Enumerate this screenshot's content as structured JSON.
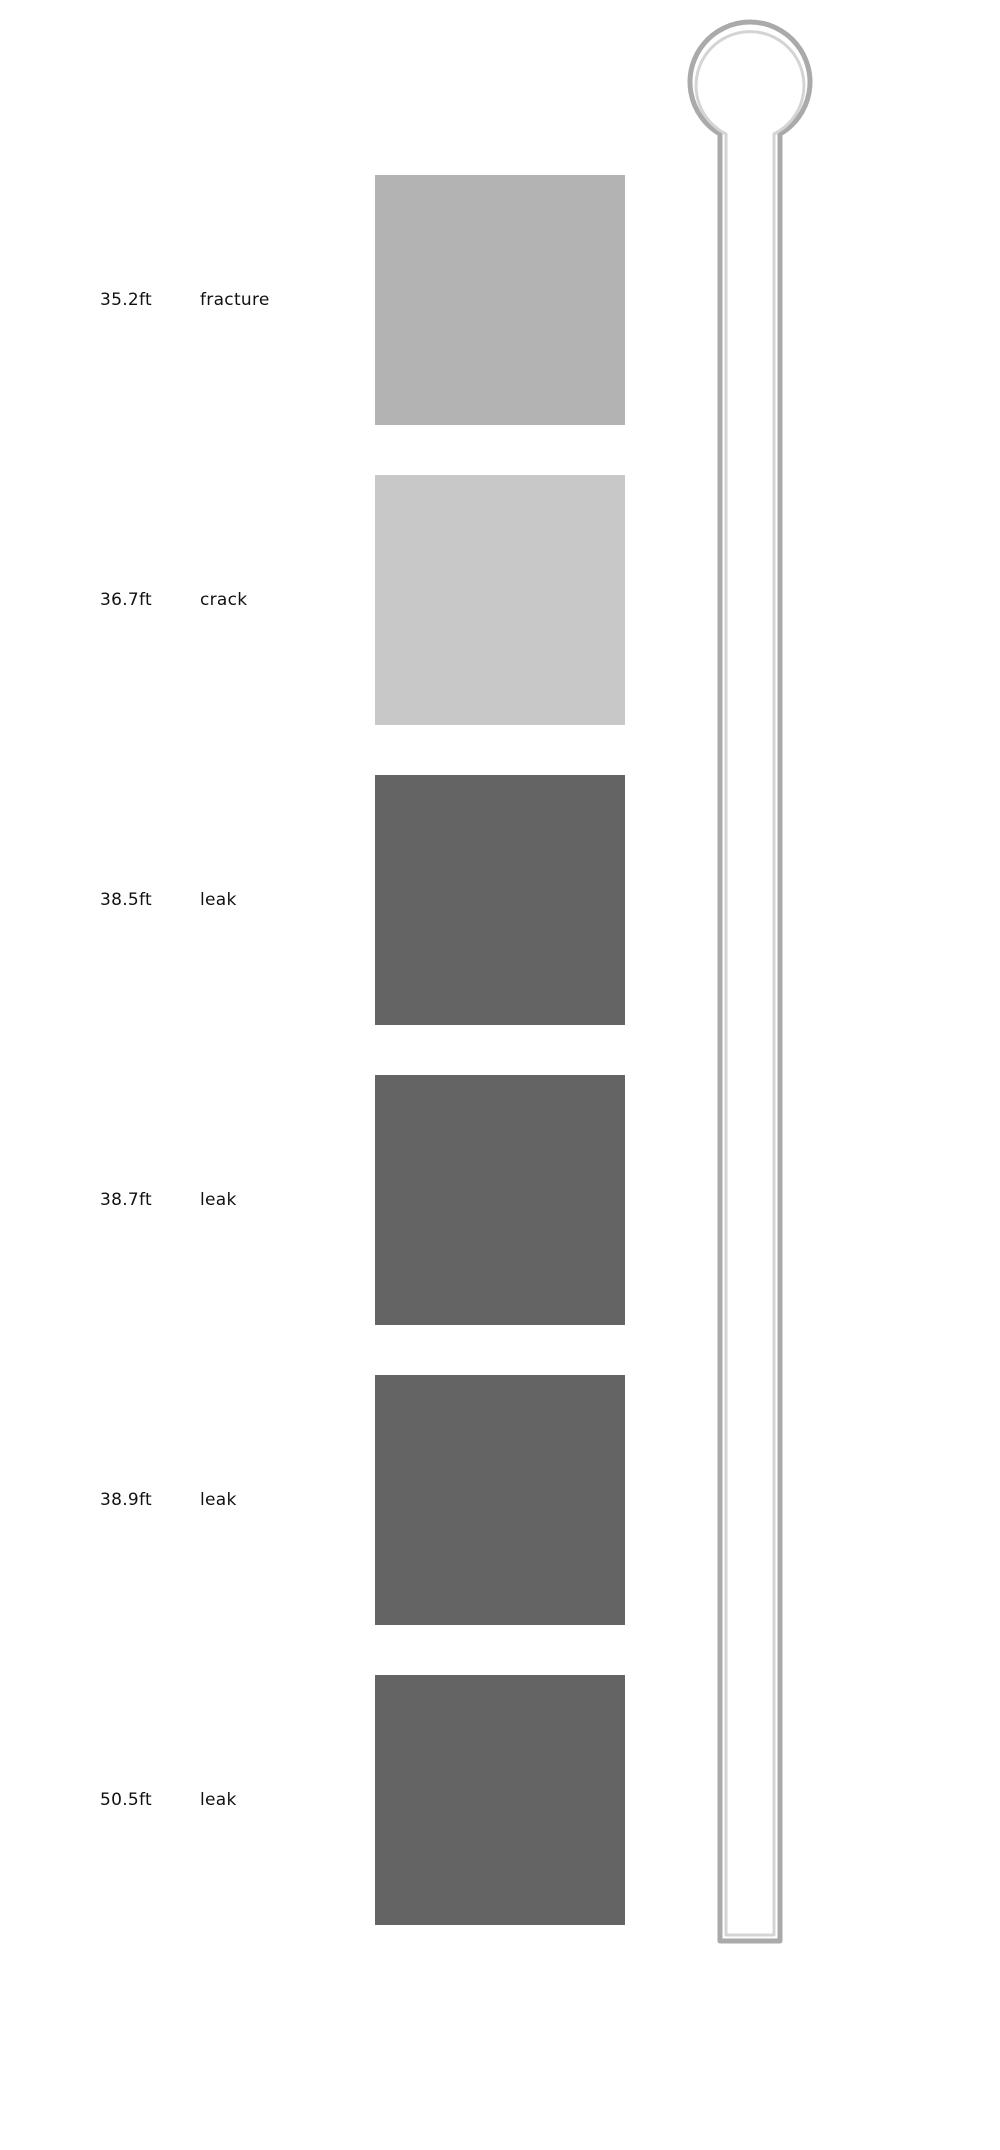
{
  "defects": [
    {
      "depth": "35.2ft",
      "type": "fracture",
      "color": "#b3b3b3"
    },
    {
      "depth": "36.7ft",
      "type": "crack",
      "color": "#c8c8c8"
    },
    {
      "depth": "38.5ft",
      "type": "leak",
      "color": "#646464"
    },
    {
      "depth": "38.7ft",
      "type": "leak",
      "color": "#646464"
    },
    {
      "depth": "38.9ft",
      "type": "leak",
      "color": "#646464"
    },
    {
      "depth": "50.5ft",
      "type": "leak",
      "color": "#646464"
    }
  ],
  "well": {
    "outline_color": "#aaaaaa",
    "inner_color": "#d4d4d4",
    "fill_color": "#ffffff"
  }
}
